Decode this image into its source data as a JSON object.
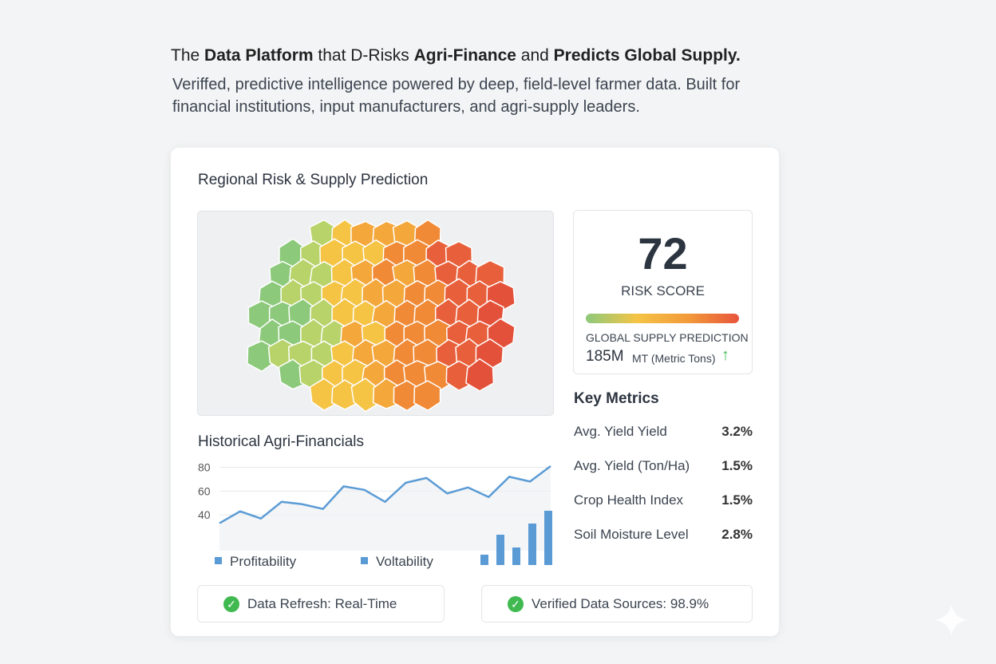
{
  "header": {
    "title_parts": [
      "The ",
      "Data Platform",
      " that D-Risks ",
      "Agri-Finance",
      " and ",
      "Predicts Global Supply."
    ],
    "subtitle_lines": [
      "Veriffed, predictive intelligence powered by deep, field-level farmer data. Built for",
      "financial institutions, input manufacturers, and agri-supply leaders."
    ]
  },
  "panel": {
    "title": "Regional Risk & Supply Prediction",
    "risk": {
      "score": "72",
      "score_label": "RISK SCORE",
      "supply_label": "GLOBAL SUPPLY PREDICTION",
      "supply_value": "185M",
      "supply_unit": "MT (Metric Tons)"
    },
    "metrics": {
      "title": "Key Metrics",
      "rows": [
        [
          "Avg. Yield Yield",
          "3.2%"
        ],
        [
          "Avg. Yield (Ton/Ha)",
          "1.5%"
        ],
        [
          "Crop Health Index",
          "1.5%"
        ],
        [
          "Soil Moisture Level",
          "2.8%"
        ]
      ]
    },
    "history": {
      "title": "Historical Agri-Financials",
      "ylim": [
        10,
        87
      ],
      "yticks": [
        40,
        60,
        80
      ],
      "values": [
        33,
        43,
        37,
        51,
        49,
        45,
        64,
        61,
        51,
        67,
        71,
        58,
        63,
        55,
        72,
        68,
        81
      ],
      "line_color": "#5b9bd5",
      "bar_ylim": [
        0,
        70
      ],
      "bars": [
        13,
        38,
        22,
        52,
        68
      ],
      "bar_color": "#5b9bd5",
      "legend": [
        "Profitability",
        "Voltability"
      ]
    },
    "badges": [
      "Data Refresh: Real-Time",
      "Verified Data Sources: 98.9%"
    ]
  }
}
